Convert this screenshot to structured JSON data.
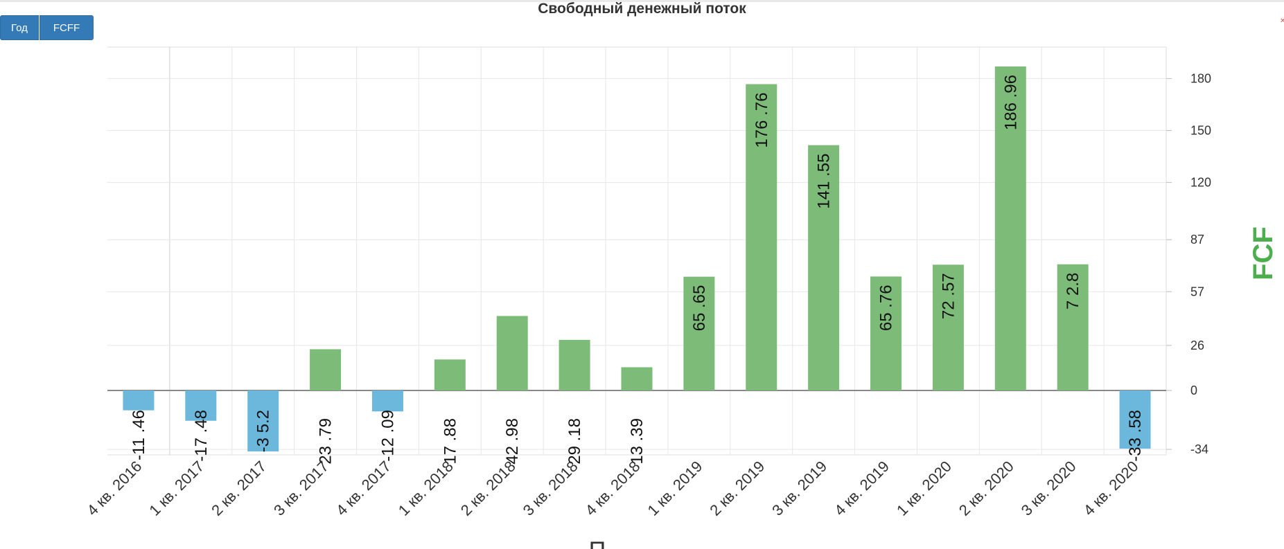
{
  "header": {
    "title": "Свободный денежный поток",
    "buttons": [
      "Год",
      "FCFF"
    ]
  },
  "colors": {
    "positive": "#7dbb78",
    "negative": "#6cb8dc",
    "axis_title": "#4cae4c",
    "grid": "#e6e6e6",
    "button": "#337ab7"
  },
  "chart_data": {
    "type": "bar",
    "title": "Свободный денежный поток",
    "ylabel": "FCF",
    "xlabel": "",
    "categories": [
      "4 кв. 2016",
      "1 кв. 2017",
      "2 кв. 2017",
      "3 кв. 2017",
      "4 кв. 2017",
      "1 кв. 2018",
      "2 кв. 2018",
      "3 кв. 2018",
      "4 кв. 2018",
      "1 кв. 2019",
      "2 кв. 2019",
      "3 кв. 2019",
      "4 кв. 2019",
      "1 кв. 2020",
      "2 кв. 2020",
      "3 кв. 2020",
      "4 кв. 2020"
    ],
    "values": [
      -11.46,
      -17.48,
      -35.2,
      23.79,
      -12.09,
      17.88,
      42.98,
      29.18,
      13.39,
      65.65,
      176.76,
      141.55,
      65.76,
      72.57,
      186.96,
      72.8,
      -33.58
    ],
    "value_labels": [
      "-11 .46",
      "-17 .48",
      "-3 5.2",
      "23 .79",
      "-12 .09",
      "17 .88",
      "42 .98",
      "29 .18",
      "13 .39",
      "65 .65",
      "176 .76",
      "141 .55",
      "65 .76",
      "72 .57",
      "186 .96",
      "7 2.8",
      "-33 .58"
    ],
    "yticks": [
      -34,
      0,
      26,
      57,
      87,
      120,
      150,
      180
    ],
    "ylim": [
      -35.2,
      186.96
    ],
    "grid": true,
    "yaxis_side": "right",
    "bottom_glyph": "П"
  }
}
